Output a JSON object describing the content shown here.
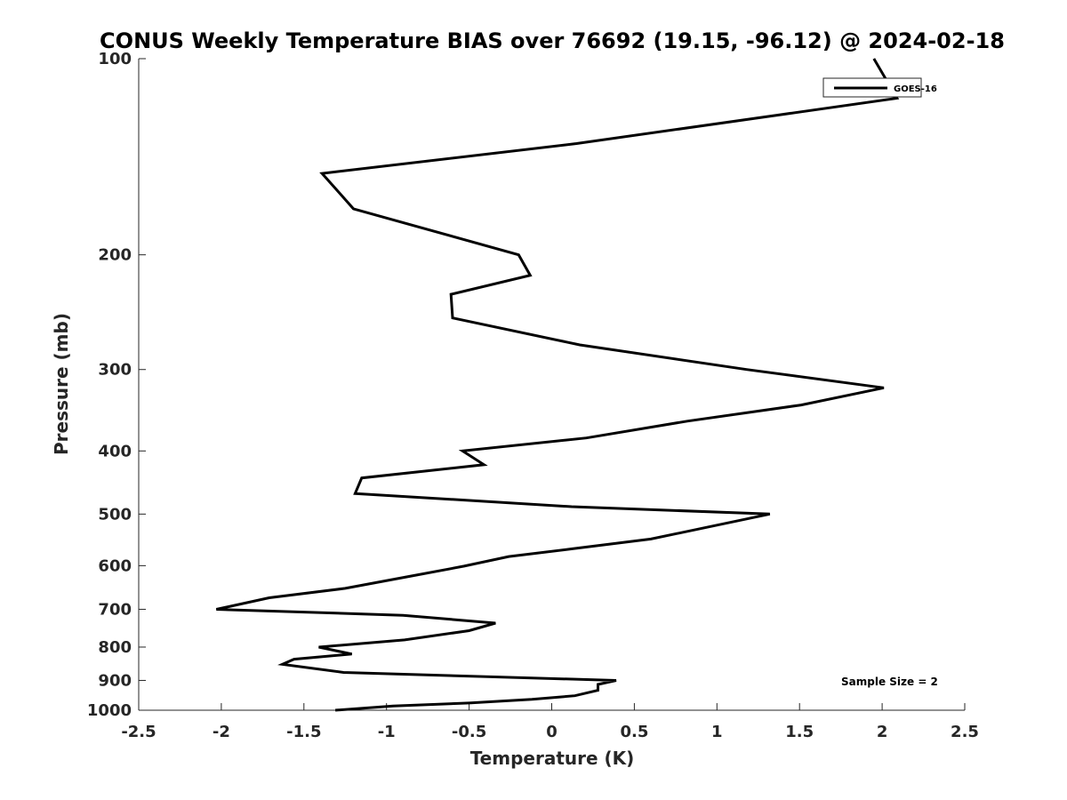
{
  "chart_data": {
    "type": "line",
    "title": "CONUS Weekly Temperature BIAS over 76692 (19.15, -96.12) @ 2024-02-18",
    "xlabel": "Temperature (K)",
    "ylabel": "Pressure (mb)",
    "xlim": [
      -2.5,
      2.5
    ],
    "ylim": [
      1000,
      100
    ],
    "yscale": "log",
    "yreversed": true,
    "grid": false,
    "x_ticks": [
      -2.5,
      -2,
      -1.5,
      -1,
      -0.5,
      0,
      0.5,
      1,
      1.5,
      2,
      2.5
    ],
    "x_tick_labels": [
      "-2.5",
      "-2",
      "-1.5",
      "-1",
      "-0.5",
      "0",
      "0.5",
      "1",
      "1.5",
      "2",
      "2.5"
    ],
    "y_ticks": [
      100,
      200,
      300,
      400,
      500,
      600,
      700,
      800,
      900,
      1000
    ],
    "y_tick_labels": [
      "100",
      "200",
      "300",
      "400",
      "500",
      "600",
      "700",
      "800",
      "900",
      "1000"
    ],
    "legend": {
      "placement": "top-right",
      "entries": [
        "GOES-16"
      ]
    },
    "annotation": "Sample Size = 2",
    "series": [
      {
        "name": "GOES-16",
        "color": "#000000",
        "points": [
          [
            1.95,
            100
          ],
          [
            2.09,
            115
          ],
          [
            0.15,
            135
          ],
          [
            -1.39,
            150
          ],
          [
            -1.2,
            170
          ],
          [
            -0.2,
            200
          ],
          [
            -0.13,
            215
          ],
          [
            -0.61,
            230
          ],
          [
            -0.6,
            250
          ],
          [
            0.17,
            275
          ],
          [
            1.18,
            300
          ],
          [
            2.01,
            320
          ],
          [
            1.51,
            340
          ],
          [
            0.82,
            360
          ],
          [
            0.21,
            382
          ],
          [
            -0.54,
            400
          ],
          [
            -0.41,
            420
          ],
          [
            -1.15,
            440
          ],
          [
            -1.19,
            465
          ],
          [
            0.12,
            487
          ],
          [
            1.32,
            500
          ],
          [
            1.0,
            520
          ],
          [
            0.6,
            546
          ],
          [
            0.13,
            565
          ],
          [
            -0.26,
            581
          ],
          [
            -0.53,
            601
          ],
          [
            -0.86,
            623
          ],
          [
            -1.25,
            650
          ],
          [
            -1.71,
            672
          ],
          [
            -2.03,
            700
          ],
          [
            -0.9,
            715
          ],
          [
            -0.34,
            735
          ],
          [
            -0.5,
            755
          ],
          [
            -0.89,
            780
          ],
          [
            -1.41,
            800
          ],
          [
            -1.21,
            820
          ],
          [
            -1.56,
            835
          ],
          [
            -1.63,
            850
          ],
          [
            -1.26,
            875
          ],
          [
            0.39,
            900
          ],
          [
            0.28,
            913
          ],
          [
            0.28,
            932
          ],
          [
            0.14,
            950
          ],
          [
            -0.12,
            962
          ],
          [
            -0.5,
            975
          ],
          [
            -0.96,
            985
          ],
          [
            -1.31,
            1000
          ]
        ]
      }
    ]
  }
}
